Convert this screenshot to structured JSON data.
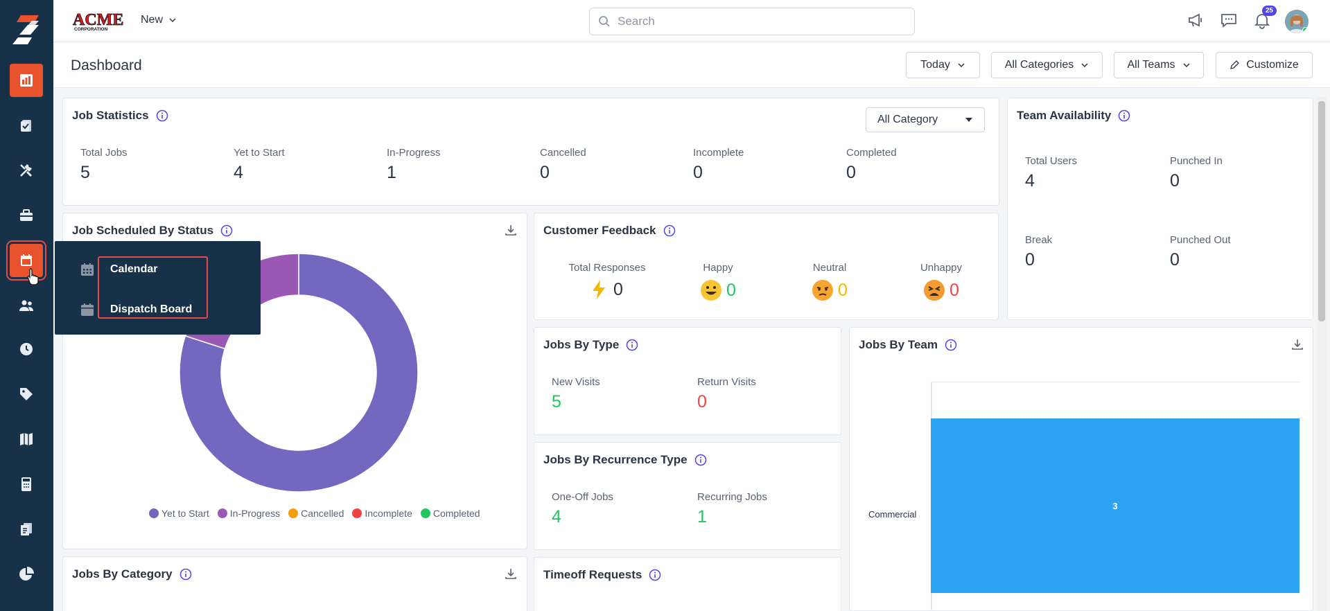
{
  "topbar": {
    "brand_name": "ACME",
    "brand_sub": "CORPORATION",
    "new_label": "New",
    "search_placeholder": "Search",
    "notification_count": "25"
  },
  "header": {
    "title": "Dashboard",
    "date_filter": "Today",
    "category_filter": "All Categories",
    "team_filter": "All Teams",
    "customize_label": "Customize"
  },
  "job_statistics": {
    "title": "Job Statistics",
    "category_select": "All Category",
    "stats": [
      {
        "label": "Total Jobs",
        "value": "5"
      },
      {
        "label": "Yet to Start",
        "value": "4"
      },
      {
        "label": "In-Progress",
        "value": "1"
      },
      {
        "label": "Cancelled",
        "value": "0"
      },
      {
        "label": "Incomplete",
        "value": "0"
      },
      {
        "label": "Completed",
        "value": "0"
      }
    ]
  },
  "team_availability": {
    "title": "Team Availability",
    "stats": [
      {
        "label": "Total Users",
        "value": "4"
      },
      {
        "label": "Punched In",
        "value": "0"
      },
      {
        "label": "Break",
        "value": "0"
      },
      {
        "label": "Punched Out",
        "value": "0"
      }
    ]
  },
  "job_scheduled": {
    "title": "Job Scheduled By Status",
    "legend": [
      "Yet to Start",
      "In-Progress",
      "Cancelled",
      "Incomplete",
      "Completed"
    ],
    "colors": [
      "#7367c0",
      "#9b59b6",
      "#f59e0b",
      "#ef4444",
      "#22c55e"
    ]
  },
  "chart_data": {
    "type": "pie",
    "title": "Job Scheduled By Status",
    "categories": [
      "Yet to Start",
      "In-Progress",
      "Cancelled",
      "Incomplete",
      "Completed"
    ],
    "values": [
      4,
      1,
      0,
      0,
      0
    ]
  },
  "customer_feedback": {
    "title": "Customer Feedback",
    "items": [
      {
        "label": "Total Responses",
        "value": "0"
      },
      {
        "label": "Happy",
        "value": "0"
      },
      {
        "label": "Neutral",
        "value": "0"
      },
      {
        "label": "Unhappy",
        "value": "0"
      }
    ]
  },
  "jobs_by_type": {
    "title": "Jobs By Type",
    "stats": [
      {
        "label": "New Visits",
        "value": "5"
      },
      {
        "label": "Return Visits",
        "value": "0"
      }
    ]
  },
  "jobs_by_recurrence": {
    "title": "Jobs By Recurrence Type",
    "stats": [
      {
        "label": "One-Off Jobs",
        "value": "4"
      },
      {
        "label": "Recurring Jobs",
        "value": "1"
      }
    ]
  },
  "jobs_by_team": {
    "title": "Jobs By Team",
    "category": "Commercial",
    "value": "3"
  },
  "jobs_by_category": {
    "title": "Jobs By Category"
  },
  "timeoff_requests": {
    "title": "Timeoff Requests"
  },
  "flyout": {
    "items": [
      {
        "label": "Calendar"
      },
      {
        "label": "Dispatch Board"
      }
    ]
  }
}
